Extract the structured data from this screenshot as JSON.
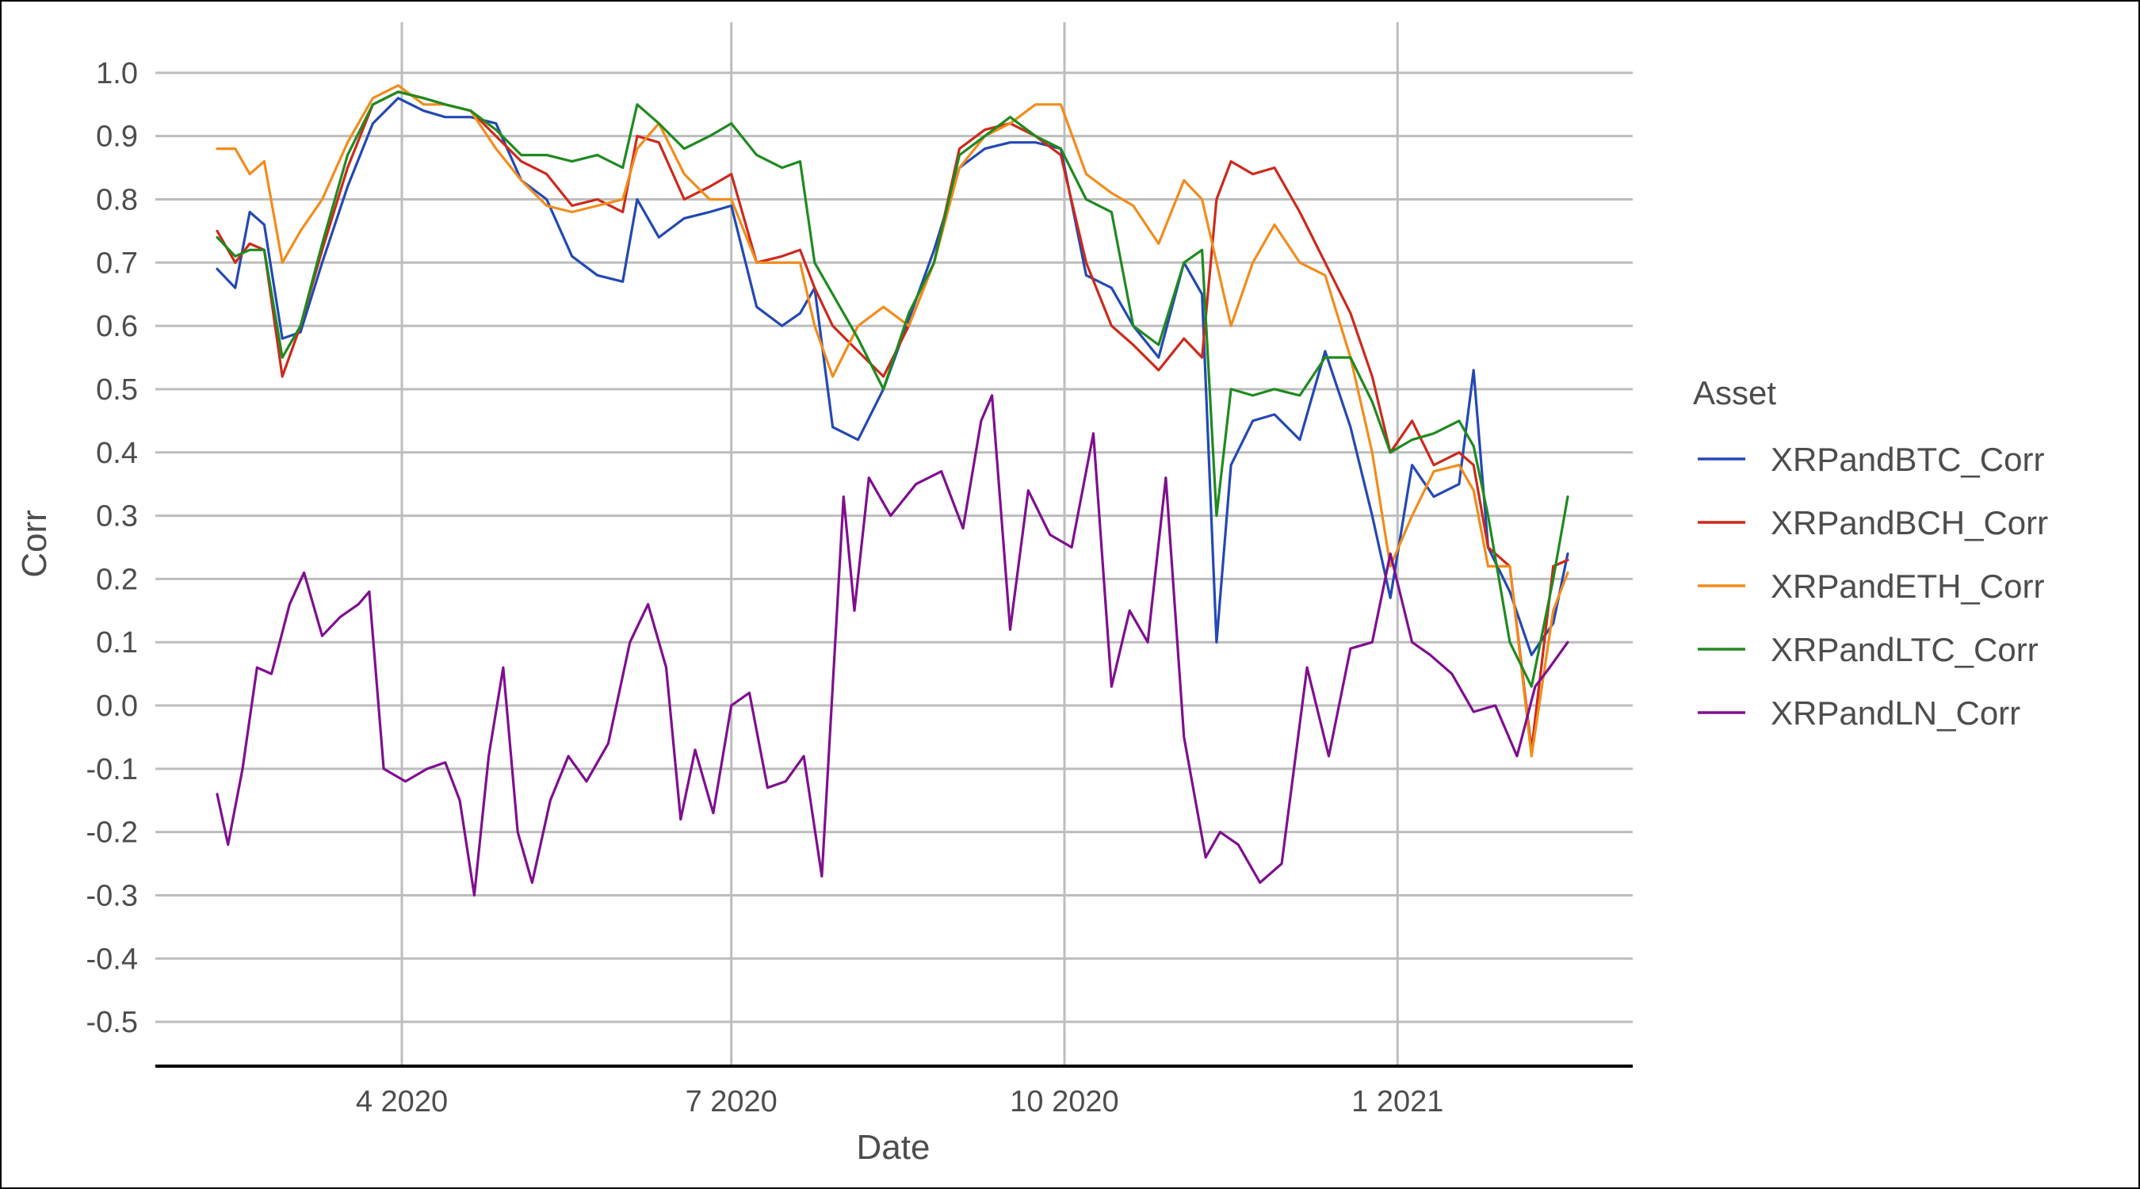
{
  "chart_data": {
    "type": "line",
    "title": "",
    "xlabel": "Date",
    "ylabel": "Corr",
    "x_start": "2020-02-10",
    "x_end": "2021-02-17",
    "x_ticks": [
      {
        "date": "2020-04-01",
        "label": "4 2020"
      },
      {
        "date": "2020-07-01",
        "label": "7 2020"
      },
      {
        "date": "2020-10-01",
        "label": "10 2020"
      },
      {
        "date": "2021-01-01",
        "label": "1 2021"
      }
    ],
    "ylim": [
      -0.57,
      1.08
    ],
    "y_ticks": [
      1.0,
      0.9,
      0.8,
      0.7,
      0.6,
      0.5,
      0.4,
      0.3,
      0.2,
      0.1,
      0.0,
      -0.1,
      -0.2,
      -0.3,
      -0.4,
      -0.5
    ],
    "y_tick_labels": [
      "1.0",
      "0.9",
      "0.8",
      "0.7",
      "0.6",
      "0.5",
      "0.4",
      "0.3",
      "0.2",
      "0.1",
      "0.0",
      "-0.1",
      "-0.2",
      "-0.3",
      "-0.4",
      "-0.5"
    ],
    "grid": true,
    "legend": {
      "title": "Asset",
      "position": "right"
    },
    "series": [
      {
        "name": "XRPandBTC_Corr",
        "color": "#2349b3",
        "x": [
          "2020-02-10",
          "2020-02-15",
          "2020-02-19",
          "2020-02-23",
          "2020-02-28",
          "2020-03-04",
          "2020-03-10",
          "2020-03-17",
          "2020-03-24",
          "2020-03-31",
          "2020-04-07",
          "2020-04-13",
          "2020-04-20",
          "2020-04-27",
          "2020-05-04",
          "2020-05-11",
          "2020-05-18",
          "2020-05-25",
          "2020-06-01",
          "2020-06-05",
          "2020-06-11",
          "2020-06-18",
          "2020-06-25",
          "2020-07-01",
          "2020-07-08",
          "2020-07-15",
          "2020-07-20",
          "2020-07-24",
          "2020-07-29",
          "2020-08-05",
          "2020-08-12",
          "2020-08-19",
          "2020-08-26",
          "2020-09-02",
          "2020-09-09",
          "2020-09-16",
          "2020-09-23",
          "2020-09-30",
          "2020-10-07",
          "2020-10-14",
          "2020-10-20",
          "2020-10-27",
          "2020-11-03",
          "2020-11-08",
          "2020-11-12",
          "2020-11-16",
          "2020-11-22",
          "2020-11-28",
          "2020-12-05",
          "2020-12-12",
          "2020-12-19",
          "2020-12-25",
          "2020-12-30",
          "2021-01-05",
          "2021-01-11",
          "2021-01-18",
          "2021-01-22",
          "2021-01-26",
          "2021-02-01",
          "2021-02-07",
          "2021-02-13",
          "2021-02-17"
        ],
        "y": [
          0.69,
          0.66,
          0.78,
          0.76,
          0.58,
          0.59,
          0.7,
          0.82,
          0.92,
          0.96,
          0.94,
          0.93,
          0.93,
          0.92,
          0.83,
          0.8,
          0.71,
          0.68,
          0.67,
          0.8,
          0.74,
          0.77,
          0.78,
          0.79,
          0.63,
          0.6,
          0.62,
          0.66,
          0.44,
          0.42,
          0.5,
          0.61,
          0.72,
          0.85,
          0.88,
          0.89,
          0.89,
          0.88,
          0.68,
          0.66,
          0.6,
          0.55,
          0.7,
          0.65,
          0.1,
          0.38,
          0.45,
          0.46,
          0.42,
          0.56,
          0.44,
          0.3,
          0.17,
          0.38,
          0.33,
          0.35,
          0.53,
          0.25,
          0.18,
          0.08,
          0.13,
          0.24
        ]
      },
      {
        "name": "XRPandBCH_Corr",
        "color": "#cc2a1c",
        "x": [
          "2020-02-10",
          "2020-02-15",
          "2020-02-19",
          "2020-02-23",
          "2020-02-28",
          "2020-03-04",
          "2020-03-10",
          "2020-03-17",
          "2020-03-24",
          "2020-03-31",
          "2020-04-07",
          "2020-04-13",
          "2020-04-20",
          "2020-04-27",
          "2020-05-04",
          "2020-05-11",
          "2020-05-18",
          "2020-05-25",
          "2020-06-01",
          "2020-06-05",
          "2020-06-11",
          "2020-06-18",
          "2020-06-25",
          "2020-07-01",
          "2020-07-08",
          "2020-07-15",
          "2020-07-20",
          "2020-07-24",
          "2020-07-29",
          "2020-08-05",
          "2020-08-12",
          "2020-08-19",
          "2020-08-26",
          "2020-09-02",
          "2020-09-09",
          "2020-09-16",
          "2020-09-23",
          "2020-09-30",
          "2020-10-07",
          "2020-10-14",
          "2020-10-20",
          "2020-10-27",
          "2020-11-03",
          "2020-11-08",
          "2020-11-12",
          "2020-11-16",
          "2020-11-22",
          "2020-11-28",
          "2020-12-05",
          "2020-12-12",
          "2020-12-19",
          "2020-12-25",
          "2020-12-30",
          "2021-01-05",
          "2021-01-11",
          "2021-01-18",
          "2021-01-22",
          "2021-01-26",
          "2021-02-01",
          "2021-02-07",
          "2021-02-13",
          "2021-02-17"
        ],
        "y": [
          0.75,
          0.7,
          0.73,
          0.72,
          0.52,
          0.6,
          0.72,
          0.85,
          0.95,
          0.97,
          0.96,
          0.95,
          0.94,
          0.9,
          0.86,
          0.84,
          0.79,
          0.8,
          0.78,
          0.9,
          0.89,
          0.8,
          0.82,
          0.84,
          0.7,
          0.71,
          0.72,
          0.66,
          0.6,
          0.56,
          0.52,
          0.6,
          0.7,
          0.88,
          0.91,
          0.92,
          0.9,
          0.87,
          0.7,
          0.6,
          0.57,
          0.53,
          0.58,
          0.55,
          0.8,
          0.86,
          0.84,
          0.85,
          0.78,
          0.7,
          0.62,
          0.52,
          0.4,
          0.45,
          0.38,
          0.4,
          0.38,
          0.25,
          0.22,
          -0.07,
          0.22,
          0.23
        ]
      },
      {
        "name": "XRPandETH_Corr",
        "color": "#f28c1c",
        "x": [
          "2020-02-10",
          "2020-02-15",
          "2020-02-19",
          "2020-02-23",
          "2020-02-28",
          "2020-03-04",
          "2020-03-10",
          "2020-03-17",
          "2020-03-24",
          "2020-03-31",
          "2020-04-07",
          "2020-04-13",
          "2020-04-20",
          "2020-04-27",
          "2020-05-04",
          "2020-05-11",
          "2020-05-18",
          "2020-05-25",
          "2020-06-01",
          "2020-06-05",
          "2020-06-11",
          "2020-06-18",
          "2020-06-25",
          "2020-07-01",
          "2020-07-08",
          "2020-07-15",
          "2020-07-20",
          "2020-07-24",
          "2020-07-29",
          "2020-08-05",
          "2020-08-12",
          "2020-08-19",
          "2020-08-26",
          "2020-09-02",
          "2020-09-09",
          "2020-09-16",
          "2020-09-23",
          "2020-09-30",
          "2020-10-07",
          "2020-10-14",
          "2020-10-20",
          "2020-10-27",
          "2020-11-03",
          "2020-11-08",
          "2020-11-12",
          "2020-11-16",
          "2020-11-22",
          "2020-11-28",
          "2020-12-05",
          "2020-12-12",
          "2020-12-19",
          "2020-12-25",
          "2020-12-30",
          "2021-01-05",
          "2021-01-11",
          "2021-01-18",
          "2021-01-22",
          "2021-01-26",
          "2021-02-01",
          "2021-02-07",
          "2021-02-13",
          "2021-02-17"
        ],
        "y": [
          0.88,
          0.88,
          0.84,
          0.86,
          0.7,
          0.75,
          0.8,
          0.89,
          0.96,
          0.98,
          0.95,
          0.95,
          0.94,
          0.88,
          0.83,
          0.79,
          0.78,
          0.79,
          0.8,
          0.88,
          0.92,
          0.84,
          0.8,
          0.8,
          0.7,
          0.7,
          0.7,
          0.6,
          0.52,
          0.6,
          0.63,
          0.6,
          0.7,
          0.85,
          0.9,
          0.92,
          0.95,
          0.95,
          0.84,
          0.81,
          0.79,
          0.73,
          0.83,
          0.8,
          0.7,
          0.6,
          0.7,
          0.76,
          0.7,
          0.68,
          0.55,
          0.4,
          0.22,
          0.3,
          0.37,
          0.38,
          0.34,
          0.22,
          0.22,
          -0.08,
          0.15,
          0.21
        ]
      },
      {
        "name": "XRPandLTC_Corr",
        "color": "#1f8a1f",
        "x": [
          "2020-02-10",
          "2020-02-15",
          "2020-02-19",
          "2020-02-23",
          "2020-02-28",
          "2020-03-04",
          "2020-03-10",
          "2020-03-17",
          "2020-03-24",
          "2020-03-31",
          "2020-04-07",
          "2020-04-13",
          "2020-04-20",
          "2020-04-27",
          "2020-05-04",
          "2020-05-11",
          "2020-05-18",
          "2020-05-25",
          "2020-06-01",
          "2020-06-05",
          "2020-06-11",
          "2020-06-18",
          "2020-06-25",
          "2020-07-01",
          "2020-07-08",
          "2020-07-15",
          "2020-07-20",
          "2020-07-24",
          "2020-07-29",
          "2020-08-05",
          "2020-08-12",
          "2020-08-19",
          "2020-08-26",
          "2020-09-02",
          "2020-09-09",
          "2020-09-16",
          "2020-09-23",
          "2020-09-30",
          "2020-10-07",
          "2020-10-14",
          "2020-10-20",
          "2020-10-27",
          "2020-11-03",
          "2020-11-08",
          "2020-11-12",
          "2020-11-16",
          "2020-11-22",
          "2020-11-28",
          "2020-12-05",
          "2020-12-12",
          "2020-12-19",
          "2020-12-25",
          "2020-12-30",
          "2021-01-05",
          "2021-01-11",
          "2021-01-18",
          "2021-01-22",
          "2021-01-26",
          "2021-02-01",
          "2021-02-07",
          "2021-02-13",
          "2021-02-17"
        ],
        "y": [
          0.74,
          0.71,
          0.72,
          0.72,
          0.55,
          0.6,
          0.73,
          0.87,
          0.95,
          0.97,
          0.96,
          0.95,
          0.94,
          0.91,
          0.87,
          0.87,
          0.86,
          0.87,
          0.85,
          0.95,
          0.92,
          0.88,
          0.9,
          0.92,
          0.87,
          0.85,
          0.86,
          0.7,
          0.65,
          0.58,
          0.5,
          0.62,
          0.7,
          0.87,
          0.9,
          0.93,
          0.9,
          0.88,
          0.8,
          0.78,
          0.6,
          0.57,
          0.7,
          0.72,
          0.3,
          0.5,
          0.49,
          0.5,
          0.49,
          0.55,
          0.55,
          0.48,
          0.4,
          0.42,
          0.43,
          0.45,
          0.41,
          0.3,
          0.1,
          0.03,
          0.2,
          0.33
        ]
      },
      {
        "name": "XRPandLN_Corr",
        "color": "#7f0f8f",
        "x": [
          "2020-02-10",
          "2020-02-13",
          "2020-02-17",
          "2020-02-21",
          "2020-02-25",
          "2020-03-01",
          "2020-03-05",
          "2020-03-10",
          "2020-03-15",
          "2020-03-20",
          "2020-03-23",
          "2020-03-27",
          "2020-04-02",
          "2020-04-08",
          "2020-04-13",
          "2020-04-17",
          "2020-04-21",
          "2020-04-25",
          "2020-04-29",
          "2020-05-03",
          "2020-05-07",
          "2020-05-12",
          "2020-05-17",
          "2020-05-22",
          "2020-05-28",
          "2020-06-03",
          "2020-06-08",
          "2020-06-13",
          "2020-06-17",
          "2020-06-21",
          "2020-06-26",
          "2020-07-01",
          "2020-07-06",
          "2020-07-11",
          "2020-07-16",
          "2020-07-21",
          "2020-07-26",
          "2020-08-01",
          "2020-08-04",
          "2020-08-08",
          "2020-08-14",
          "2020-08-21",
          "2020-08-28",
          "2020-09-03",
          "2020-09-08",
          "2020-09-11",
          "2020-09-16",
          "2020-09-21",
          "2020-09-27",
          "2020-10-03",
          "2020-10-09",
          "2020-10-14",
          "2020-10-19",
          "2020-10-24",
          "2020-10-29",
          "2020-11-03",
          "2020-11-09",
          "2020-11-13",
          "2020-11-18",
          "2020-11-24",
          "2020-11-30",
          "2020-12-07",
          "2020-12-13",
          "2020-12-19",
          "2020-12-25",
          "2020-12-30",
          "2021-01-05",
          "2021-01-10",
          "2021-01-16",
          "2021-01-22",
          "2021-01-28",
          "2021-02-03",
          "2021-02-08",
          "2021-02-12",
          "2021-02-17"
        ],
        "y": [
          -0.14,
          -0.22,
          -0.1,
          0.06,
          0.05,
          0.16,
          0.21,
          0.11,
          0.14,
          0.16,
          0.18,
          -0.1,
          -0.12,
          -0.1,
          -0.09,
          -0.15,
          -0.3,
          -0.08,
          0.06,
          -0.2,
          -0.28,
          -0.15,
          -0.08,
          -0.12,
          -0.06,
          0.1,
          0.16,
          0.06,
          -0.18,
          -0.07,
          -0.17,
          0.0,
          0.02,
          -0.13,
          -0.12,
          -0.08,
          -0.27,
          0.33,
          0.15,
          0.36,
          0.3,
          0.35,
          0.37,
          0.28,
          0.45,
          0.49,
          0.12,
          0.34,
          0.27,
          0.25,
          0.43,
          0.03,
          0.15,
          0.1,
          0.36,
          -0.05,
          -0.24,
          -0.2,
          -0.22,
          -0.28,
          -0.25,
          0.06,
          -0.08,
          0.09,
          0.1,
          0.24,
          0.1,
          0.08,
          0.05,
          -0.01,
          0.0,
          -0.08,
          0.03,
          0.06,
          0.1
        ]
      }
    ]
  }
}
